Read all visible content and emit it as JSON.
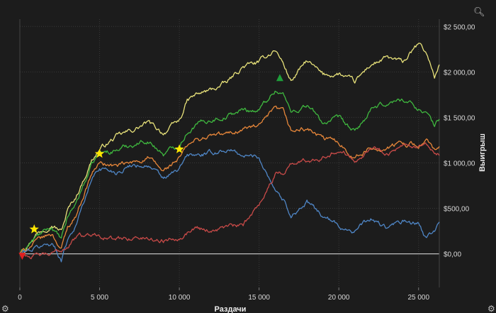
{
  "icons": {
    "zoom": "magnifier-icon",
    "settings": "gear-icon"
  },
  "chart_data": {
    "type": "line",
    "title": "",
    "xlabel": "Раздачи",
    "ylabel": "Выигрыш",
    "xlim": [
      0,
      26300
    ],
    "ylim": [
      -370,
      2580
    ],
    "x_ticks": [
      {
        "value": 0,
        "label": "0"
      },
      {
        "value": 5000,
        "label": "5 000"
      },
      {
        "value": 10000,
        "label": "10 000"
      },
      {
        "value": 15000,
        "label": "15 000"
      },
      {
        "value": 20000,
        "label": "20 000"
      },
      {
        "value": 25000,
        "label": "25 000"
      }
    ],
    "y_ticks": [
      {
        "value": 0,
        "label": "$0,00"
      },
      {
        "value": 500,
        "label": "$500,00"
      },
      {
        "value": 1000,
        "label": "$1 000,00"
      },
      {
        "value": 1500,
        "label": "$1 500,00"
      },
      {
        "value": 2000,
        "label": "$2 000,00"
      },
      {
        "value": 2500,
        "label": "$2 500,00"
      }
    ],
    "grid": true,
    "x": [
      0,
      1000,
      2000,
      2600,
      3000,
      3500,
      4000,
      4500,
      5000,
      6000,
      7000,
      8000,
      9000,
      10000,
      10500,
      11000,
      12000,
      13000,
      14000,
      15000,
      16000,
      16500,
      17000,
      18000,
      19000,
      20000,
      21000,
      22000,
      23000,
      24000,
      25000,
      25500,
      26000,
      26300
    ],
    "series": [
      {
        "color": "#e8e27a",
        "values": [
          0,
          220,
          340,
          250,
          480,
          620,
          820,
          1030,
          1150,
          1280,
          1350,
          1440,
          1330,
          1460,
          1680,
          1740,
          1800,
          1880,
          2060,
          2100,
          2250,
          2100,
          1900,
          2120,
          1960,
          1980,
          1880,
          2080,
          2150,
          2100,
          2300,
          2200,
          1950,
          2080
        ]
      },
      {
        "color": "#3fb83f",
        "values": [
          0,
          180,
          290,
          150,
          400,
          550,
          760,
          970,
          1100,
          1140,
          1200,
          1250,
          1100,
          1200,
          1350,
          1420,
          1480,
          1520,
          1580,
          1580,
          1800,
          1770,
          1550,
          1640,
          1440,
          1480,
          1330,
          1570,
          1650,
          1700,
          1600,
          1550,
          1400,
          1480
        ]
      },
      {
        "color": "#e8873a",
        "values": [
          0,
          130,
          220,
          60,
          290,
          420,
          650,
          880,
          1000,
          960,
          990,
          1060,
          900,
          1050,
          1180,
          1240,
          1300,
          1310,
          1380,
          1400,
          1580,
          1550,
          1340,
          1380,
          1260,
          1230,
          1060,
          1160,
          1160,
          1220,
          1200,
          1250,
          1120,
          1180
        ]
      },
      {
        "color": "#4f86c6",
        "values": [
          0,
          60,
          120,
          -60,
          170,
          320,
          560,
          820,
          950,
          900,
          980,
          980,
          820,
          920,
          1080,
          1080,
          1100,
          1150,
          1080,
          1060,
          720,
          600,
          430,
          560,
          420,
          300,
          260,
          380,
          280,
          350,
          320,
          150,
          250,
          350
        ]
      },
      {
        "color": "#c84a48",
        "values": [
          0,
          -30,
          -10,
          40,
          90,
          180,
          200,
          210,
          220,
          150,
          180,
          170,
          150,
          200,
          240,
          300,
          260,
          300,
          300,
          560,
          870,
          900,
          1000,
          1020,
          1080,
          1150,
          1050,
          1170,
          1120,
          1160,
          1150,
          1170,
          1080,
          1080
        ]
      }
    ],
    "markers": [
      {
        "shape": "star",
        "color": "#ffe600",
        "x": 900,
        "y": 270
      },
      {
        "shape": "star",
        "color": "#ffe600",
        "x": 5000,
        "y": 1100
      },
      {
        "shape": "star",
        "color": "#ffe600",
        "x": 10000,
        "y": 1150
      },
      {
        "shape": "triangle-up",
        "color": "#1e9e3a",
        "x": 16300,
        "y": 1930
      },
      {
        "shape": "triangle-down",
        "color": "#e02020",
        "x": 150,
        "y": -20
      }
    ]
  }
}
